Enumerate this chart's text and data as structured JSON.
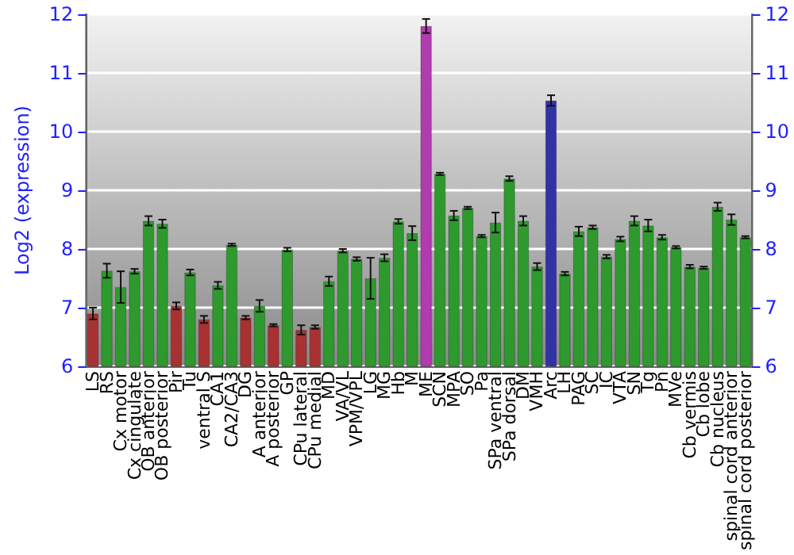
{
  "chart_data": {
    "type": "bar",
    "ylabel": "Log2 (expression)",
    "categories": [
      "LS",
      "RS",
      "Cx motor",
      "Cx cingulate",
      "OB anterior",
      "OB posterior",
      "Pir",
      "Tu",
      "ventral S",
      "CA1",
      "CA2/CA3",
      "DG",
      "A anterior",
      "A posterior",
      "GP",
      "CPu lateral",
      "CPu medial",
      "MD",
      "VA/VL",
      "VPM/VPL",
      "LG",
      "MG",
      "Hb",
      "M",
      "ME",
      "SCN",
      "MPA",
      "SO",
      "Pa",
      "SPa ventral",
      "SPa dorsal",
      "DM",
      "VMH",
      "Arc",
      "LH",
      "PAG",
      "SC",
      "IC",
      "VTA",
      "SN",
      "Tg",
      "Pn",
      "MVe",
      "Cb vermis",
      "Cb lobe",
      "Cb nucleus",
      "spinal cord anterior",
      "spinal cord posterior"
    ],
    "values": [
      6.9,
      7.63,
      7.35,
      7.62,
      8.48,
      8.43,
      7.03,
      7.6,
      6.8,
      7.38,
      8.07,
      6.83,
      7.03,
      6.7,
      7.99,
      6.62,
      6.67,
      7.45,
      7.97,
      7.83,
      7.5,
      7.85,
      8.47,
      8.27,
      11.8,
      9.28,
      8.57,
      8.7,
      8.22,
      8.45,
      9.2,
      8.48,
      7.7,
      10.53,
      7.58,
      8.3,
      8.37,
      7.87,
      8.17,
      8.48,
      8.4,
      8.2,
      8.03,
      7.7,
      7.68,
      8.72,
      8.5,
      8.2
    ],
    "errors": [
      0.1,
      0.12,
      0.27,
      0.04,
      0.08,
      0.07,
      0.06,
      0.05,
      0.06,
      0.06,
      0.02,
      0.03,
      0.1,
      0.02,
      0.03,
      0.08,
      0.03,
      0.08,
      0.03,
      0.03,
      0.35,
      0.06,
      0.04,
      0.12,
      0.12,
      0.02,
      0.08,
      0.02,
      0.02,
      0.17,
      0.04,
      0.08,
      0.06,
      0.09,
      0.03,
      0.08,
      0.03,
      0.03,
      0.04,
      0.08,
      0.1,
      0.04,
      0.02,
      0.03,
      0.02,
      0.07,
      0.09,
      0.02
    ],
    "colors": [
      "#a83232",
      "#2e9a2e",
      "#2e9a2e",
      "#2e9a2e",
      "#2e9a2e",
      "#2e9a2e",
      "#a83232",
      "#2e9a2e",
      "#a83232",
      "#2e9a2e",
      "#2e9a2e",
      "#a83232",
      "#2e9a2e",
      "#a83232",
      "#2e9a2e",
      "#a83232",
      "#a83232",
      "#2e9a2e",
      "#2e9a2e",
      "#2e9a2e",
      "#2e9a2e",
      "#2e9a2e",
      "#2e9a2e",
      "#2e9a2e",
      "#b03cb0",
      "#2e9a2e",
      "#2e9a2e",
      "#2e9a2e",
      "#2e9a2e",
      "#2e9a2e",
      "#2e9a2e",
      "#2e9a2e",
      "#2e9a2e",
      "#3232a8",
      "#2e9a2e",
      "#2e9a2e",
      "#2e9a2e",
      "#2e9a2e",
      "#2e9a2e",
      "#2e9a2e",
      "#2e9a2e",
      "#2e9a2e",
      "#2e9a2e",
      "#2e9a2e",
      "#2e9a2e",
      "#2e9a2e",
      "#2e9a2e",
      "#2e9a2e"
    ],
    "ylim": [
      6,
      12
    ],
    "yticks": [
      6,
      7,
      8,
      9,
      10,
      11,
      12
    ],
    "y2lim": [
      6,
      12
    ],
    "y2ticks": [
      6,
      7,
      8,
      9,
      10,
      11,
      12
    ],
    "grid": "y"
  }
}
